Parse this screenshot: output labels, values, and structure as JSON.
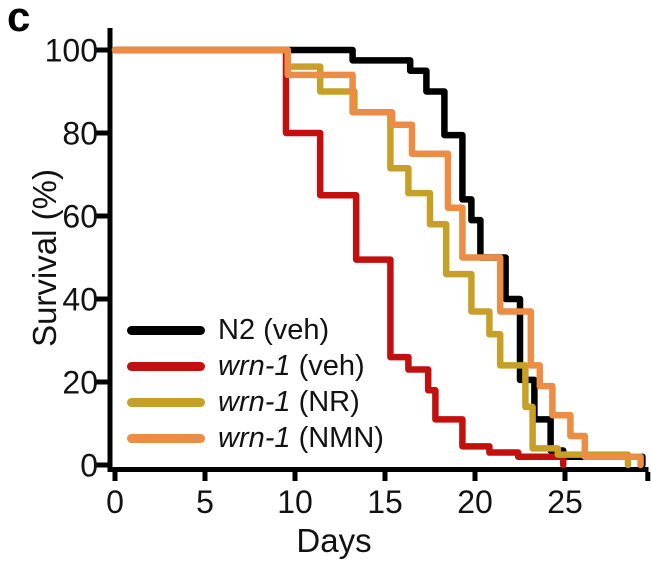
{
  "panel_label": "c",
  "colors": {
    "background": "#ffffff",
    "axis": "#000000",
    "text": "#121212",
    "n2_veh": "#000000",
    "wrn1_veh": "#c2100e",
    "wrn1_nr": "#c7a028",
    "wrn1_nmn": "#ec8c45"
  },
  "chart_data": {
    "type": "line",
    "subtype": "kaplan-meier-survival-step",
    "title": "",
    "xlabel": "Days",
    "ylabel": "Survival (%)",
    "xlim": [
      0,
      29.6
    ],
    "ylim": [
      0,
      100
    ],
    "x_ticks": [
      0,
      5,
      10,
      15,
      20,
      25
    ],
    "y_ticks": [
      100,
      80,
      60,
      40,
      20,
      0
    ],
    "x_end_tick_unlabeled": 29.6,
    "grid": false,
    "legend_position": "inside-lower-left",
    "series": [
      {
        "id": "n2-veh",
        "label_prefix": "N2",
        "label_prefix_italic": false,
        "label_rest": " (veh)",
        "color": "#000000",
        "points": [
          [
            0,
            100
          ],
          [
            13.2,
            97.5
          ],
          [
            16.4,
            95
          ],
          [
            17.3,
            90
          ],
          [
            18.3,
            79.5
          ],
          [
            19.3,
            64
          ],
          [
            19.8,
            59
          ],
          [
            20.3,
            50
          ],
          [
            21.7,
            40
          ],
          [
            22.5,
            20.5
          ],
          [
            23.3,
            11
          ],
          [
            24.2,
            3.5
          ],
          [
            24.9,
            2
          ],
          [
            29.3,
            0
          ]
        ]
      },
      {
        "id": "wrn1-veh",
        "label_prefix": "wrn-1",
        "label_prefix_italic": true,
        "label_rest": " (veh)",
        "color": "#c2100e",
        "points": [
          [
            0,
            100
          ],
          [
            9.5,
            80
          ],
          [
            11.4,
            65
          ],
          [
            13.4,
            49.5
          ],
          [
            15.3,
            26
          ],
          [
            16.3,
            23
          ],
          [
            17.4,
            18
          ],
          [
            17.8,
            11
          ],
          [
            19.3,
            4.5
          ],
          [
            20.8,
            3
          ],
          [
            22.4,
            2
          ],
          [
            24.9,
            0
          ]
        ]
      },
      {
        "id": "wrn1-nr",
        "label_prefix": "wrn-1",
        "label_prefix_italic": true,
        "label_rest": " (NR)",
        "color": "#c7a028",
        "points": [
          [
            0,
            100
          ],
          [
            9.6,
            96
          ],
          [
            11.4,
            90
          ],
          [
            13.3,
            85
          ],
          [
            15.3,
            71.5
          ],
          [
            16.3,
            65.5
          ],
          [
            17.5,
            58
          ],
          [
            18.4,
            46
          ],
          [
            19.8,
            37
          ],
          [
            20.8,
            31.5
          ],
          [
            21.4,
            24
          ],
          [
            22.8,
            14
          ],
          [
            23.2,
            4
          ],
          [
            24.6,
            2.5
          ],
          [
            28.5,
            0
          ]
        ]
      },
      {
        "id": "wrn1-nmn",
        "label_prefix": "wrn-1",
        "label_prefix_italic": true,
        "label_rest": " (NMN)",
        "color": "#ec8c45",
        "points": [
          [
            0,
            100
          ],
          [
            9.6,
            94
          ],
          [
            13.2,
            85
          ],
          [
            15.4,
            82
          ],
          [
            16.5,
            75
          ],
          [
            18.5,
            62
          ],
          [
            19.3,
            50
          ],
          [
            21.4,
            37
          ],
          [
            23.1,
            24
          ],
          [
            23.6,
            19
          ],
          [
            24.3,
            12
          ],
          [
            25.3,
            7
          ],
          [
            26.1,
            2
          ],
          [
            29.2,
            0
          ]
        ]
      }
    ]
  }
}
